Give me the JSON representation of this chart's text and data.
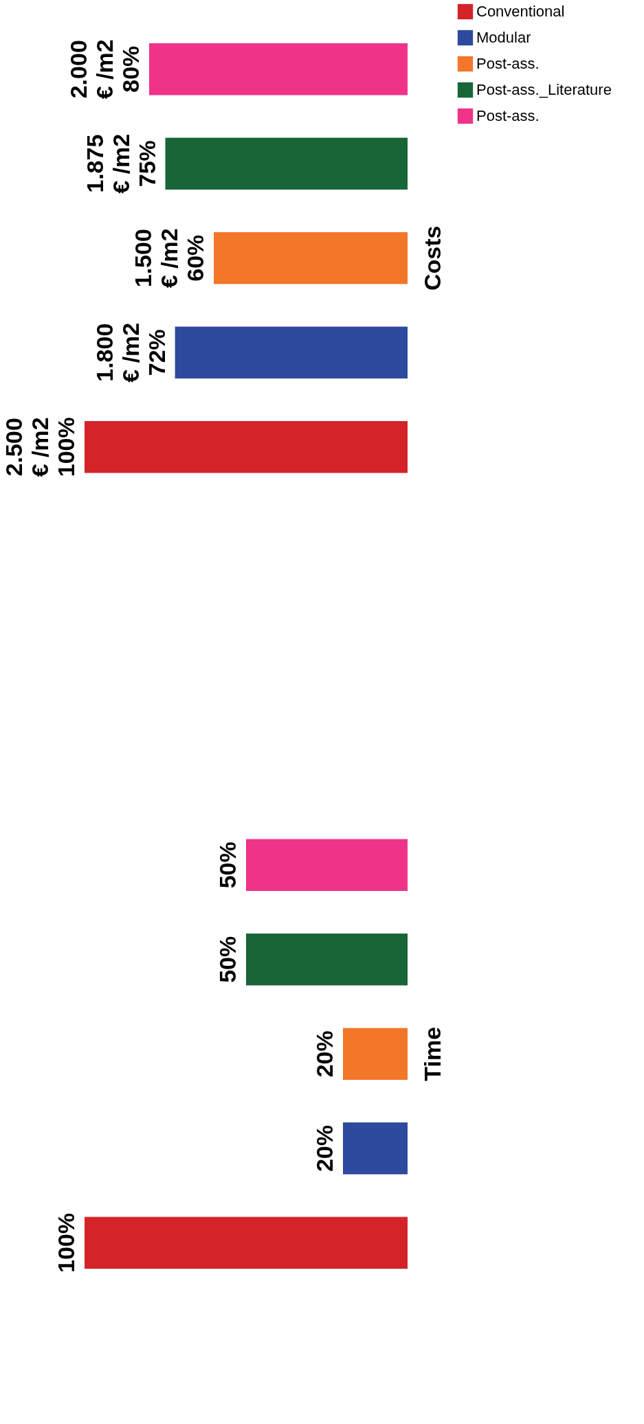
{
  "chart_data": {
    "type": "bar",
    "orientation": "horizontal",
    "legend": "right",
    "categories": [
      "Costs",
      "Time"
    ],
    "series": [
      {
        "name": "Conventional",
        "color": "#d42329",
        "values": [
          100,
          100
        ],
        "value_labels": [
          "2.500\n€ /m2\n100%",
          "100%"
        ]
      },
      {
        "name": "Modular",
        "color": "#2e4a9e",
        "values": [
          72,
          20
        ],
        "value_labels": [
          "1.800\n€ /m2\n72%",
          "20%"
        ]
      },
      {
        "name": "Post-ass.",
        "color": "#f37629",
        "values": [
          60,
          20
        ],
        "value_labels": [
          "1.500\n€ /m2\n60%",
          "20%"
        ]
      },
      {
        "name": "Post-ass._Literature",
        "color": "#186637",
        "values": [
          75,
          50
        ],
        "value_labels": [
          "1.875\n€ /m2\n75%",
          "50%"
        ]
      },
      {
        "name": "Post-ass.",
        "color": "#ee3389",
        "values": [
          80,
          50
        ],
        "value_labels": [
          "2.000\n€ /m2\n80%",
          "50%"
        ]
      }
    ]
  }
}
